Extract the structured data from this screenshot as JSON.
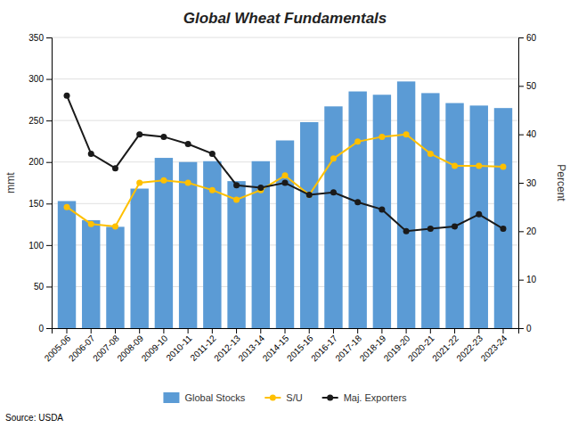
{
  "chart_data": {
    "type": "bar",
    "title": "Global Wheat Fundamentals",
    "categories": [
      "2005-06",
      "2006-07",
      "2007-08",
      "2008-09",
      "2009-10",
      "2010-11",
      "2011-12",
      "2012-13",
      "2013-14",
      "2014-15",
      "2015-16",
      "2016-17",
      "2017-18",
      "2018-19",
      "2019-20",
      "2020-21",
      "2021-22",
      "2022-23",
      "2023-24"
    ],
    "series": [
      {
        "name": "Global Stocks",
        "type": "bar",
        "color": "#5b9bd5",
        "values": [
          153,
          130,
          122,
          168,
          205,
          200,
          201,
          177,
          201,
          226,
          248,
          267,
          285,
          281,
          297,
          283,
          271,
          268,
          265
        ]
      },
      {
        "name": "S/U",
        "type": "line",
        "axis": "y2",
        "color": "#ffc000",
        "marker": "circle",
        "values": [
          25.0,
          21.5,
          21.0,
          30.0,
          30.5,
          30.0,
          28.5,
          26.5,
          28.5,
          31.5,
          27.5,
          35.0,
          38.5,
          39.5,
          40.0,
          36.0,
          33.5,
          33.5,
          33.3
        ]
      },
      {
        "name": "Maj. Exporters",
        "type": "line",
        "axis": "y2",
        "color": "#1a1a1a",
        "marker": "circle",
        "values": [
          48.0,
          36.0,
          33.0,
          40.0,
          39.5,
          38.0,
          36.0,
          29.5,
          29.0,
          30.0,
          27.5,
          28.0,
          26.0,
          24.5,
          20.0,
          20.5,
          21.0,
          23.5,
          20.5
        ]
      }
    ],
    "ylabel": "mmt",
    "y2label": "Percent",
    "ylim": [
      0,
      350
    ],
    "yticks": [
      0,
      50,
      100,
      150,
      200,
      250,
      300,
      350
    ],
    "y2lim": [
      0,
      60
    ],
    "y2ticks": [
      0,
      10,
      20,
      30,
      40,
      50,
      60
    ],
    "grid": true,
    "legend": "bottom",
    "annotations": [
      "Source: USDA"
    ]
  }
}
